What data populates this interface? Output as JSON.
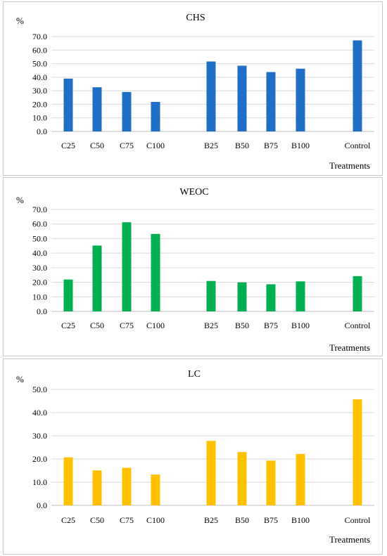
{
  "chart_data": [
    {
      "type": "bar",
      "title": "CHS",
      "ylabel": "%",
      "xlabel": "Treatments",
      "ylim": [
        0,
        70
      ],
      "yticks": [
        "0.0",
        "10.0",
        "20.0",
        "30.0",
        "40.0",
        "50.0",
        "60.0",
        "70.0"
      ],
      "grid": true,
      "color": "#1f6fc6",
      "categories": [
        "C25",
        "C50",
        "C75",
        "C100",
        "B25",
        "B50",
        "B75",
        "B100",
        "Control"
      ],
      "values": [
        39.0,
        32.6,
        29.1,
        21.8,
        51.6,
        48.5,
        43.8,
        46.3,
        67.2
      ]
    },
    {
      "type": "bar",
      "title": "WEOC",
      "ylabel": "%",
      "xlabel": "Treatments",
      "ylim": [
        0,
        70
      ],
      "yticks": [
        "0.0",
        "10.0",
        "20.0",
        "30.0",
        "40.0",
        "50.0",
        "60.0",
        "70.0"
      ],
      "grid": true,
      "color": "#00b050",
      "categories": [
        "C25",
        "C50",
        "C75",
        "C100",
        "B25",
        "B50",
        "B75",
        "B100",
        "Control"
      ],
      "values": [
        21.9,
        45.2,
        61.2,
        53.2,
        20.9,
        19.9,
        18.6,
        20.6,
        24.2
      ]
    },
    {
      "type": "bar",
      "title": "LC",
      "ylabel": "%",
      "xlabel": "Treatments",
      "ylim": [
        0,
        50
      ],
      "yticks": [
        "0.0",
        "10.0",
        "20.0",
        "30.0",
        "40.0",
        "50.0"
      ],
      "grid": true,
      "color": "#ffc000",
      "categories": [
        "C25",
        "C50",
        "C75",
        "C100",
        "B25",
        "B50",
        "B75",
        "B100",
        "Control"
      ],
      "values": [
        20.7,
        15.1,
        16.2,
        13.3,
        27.8,
        23.0,
        19.3,
        22.2,
        45.7
      ]
    }
  ]
}
